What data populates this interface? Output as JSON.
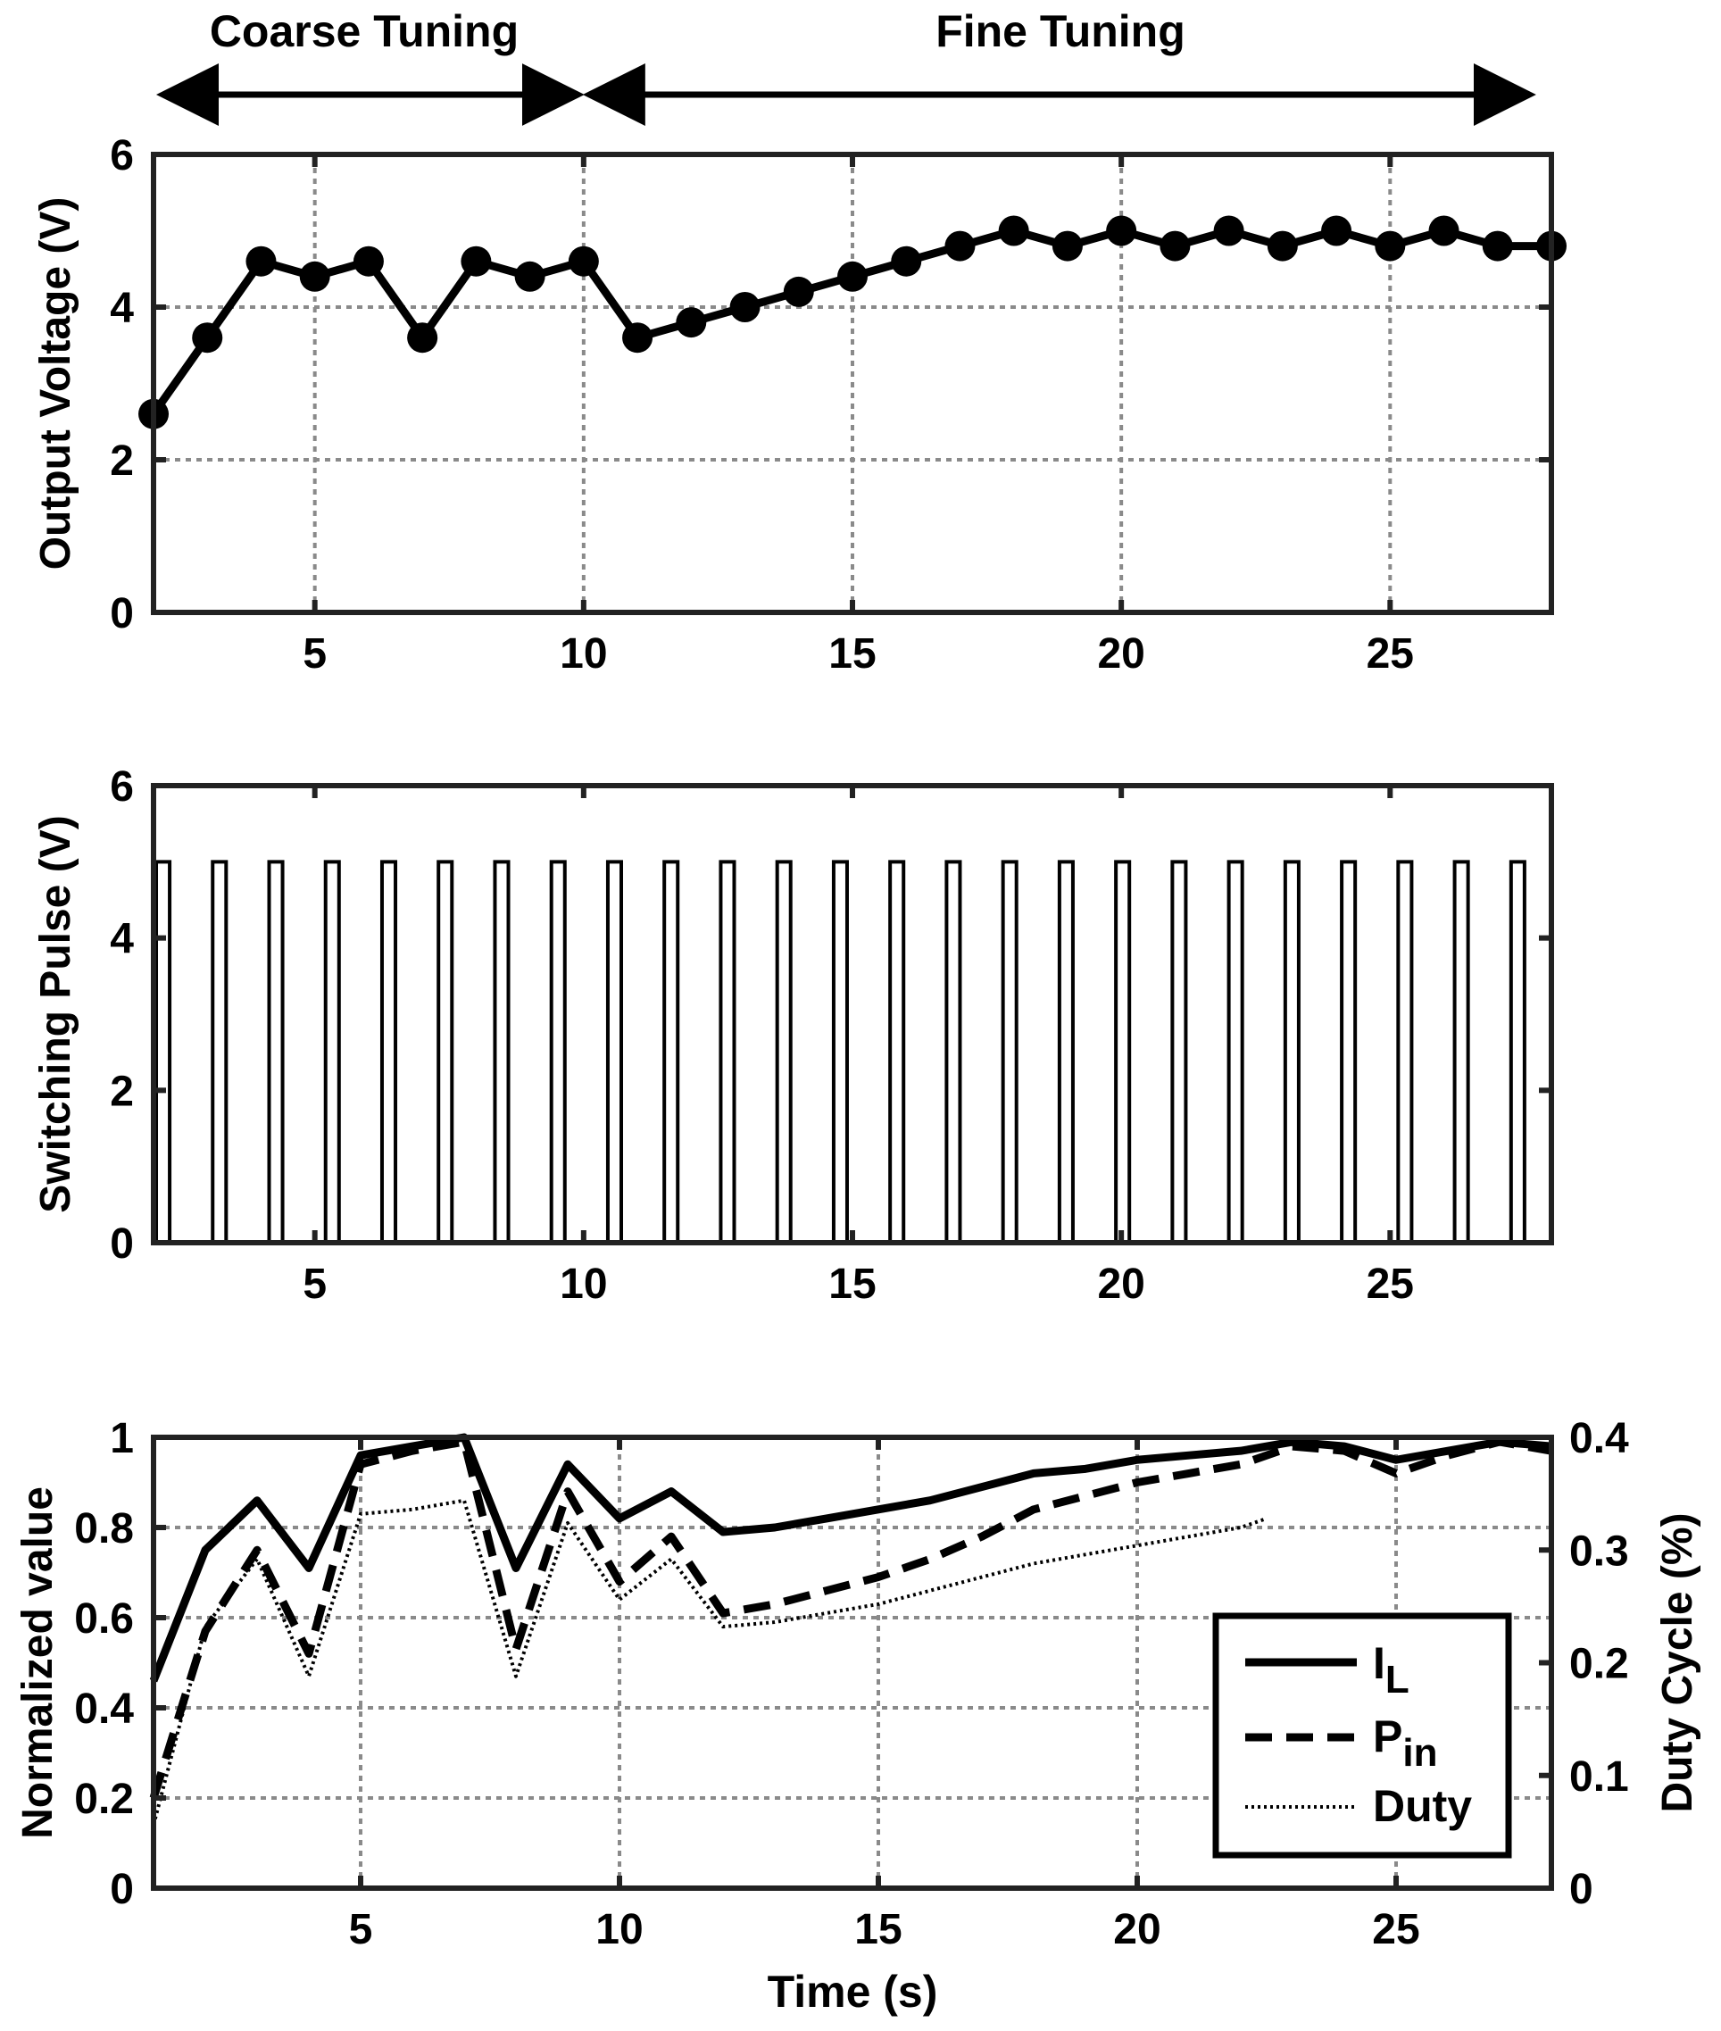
{
  "phases": {
    "coarse_label": "Coarse Tuning",
    "fine_label": "Fine Tuning",
    "coarse_range": [
      2,
      10
    ],
    "fine_range": [
      10,
      27.6
    ]
  },
  "colors": {
    "ink": "#000000",
    "grid": "#8a8a8a"
  },
  "chart_data": [
    {
      "type": "line",
      "title": "",
      "xlabel": "",
      "ylabel": "Output Voltage (V)",
      "xlim": [
        2,
        28
      ],
      "ylim": [
        0,
        6
      ],
      "xticks": [
        5,
        10,
        15,
        20,
        25
      ],
      "yticks": [
        0,
        2,
        4,
        6
      ],
      "grid": true,
      "marker": "circle",
      "series": [
        {
          "x": [
            2,
            3,
            4,
            5,
            6,
            7,
            8,
            9,
            10,
            11,
            12,
            13,
            14,
            15,
            16,
            17,
            18,
            19,
            20,
            21,
            22,
            23,
            24,
            25,
            26,
            27,
            28
          ],
          "y": [
            2.6,
            3.6,
            4.6,
            4.4,
            4.6,
            3.6,
            4.6,
            4.4,
            4.6,
            3.6,
            3.8,
            4.0,
            4.2,
            4.4,
            4.6,
            4.8,
            5.0,
            4.8,
            5.0,
            4.8,
            5.0,
            4.8,
            5.0,
            4.8,
            5.0,
            4.8,
            4.8
          ]
        }
      ]
    },
    {
      "type": "line",
      "title": "",
      "xlabel": "",
      "ylabel": "Switching Pulse (V)",
      "xlim": [
        2,
        28
      ],
      "ylim": [
        0,
        6
      ],
      "xticks": [
        5,
        10,
        15,
        20,
        25
      ],
      "yticks": [
        0,
        2,
        4,
        6
      ],
      "grid": false,
      "pulse": {
        "high": 5,
        "low": 0,
        "period": 1.05,
        "start": 2.05,
        "width": 0.25,
        "count": 25
      }
    },
    {
      "type": "line",
      "title": "",
      "xlabel": "Time (s)",
      "ylabel": "Normalized value",
      "y2label": "Duty Cycle (%)",
      "xlim": [
        1,
        28
      ],
      "ylim": [
        0,
        1
      ],
      "y2lim": [
        0,
        0.4
      ],
      "xticks": [
        5,
        10,
        15,
        20,
        25
      ],
      "yticks": [
        0,
        0.2,
        0.4,
        0.6,
        0.8,
        1
      ],
      "ytick_labels": [
        "0",
        "0.2",
        "0.4",
        "0.6",
        "0.8",
        "1"
      ],
      "y2ticks": [
        0,
        0.1,
        0.2,
        0.3,
        0.4
      ],
      "y2tick_labels": [
        "0",
        "0.1",
        "0.2",
        "0.3",
        "0.4"
      ],
      "grid": true,
      "legend_position": "lower-right",
      "series": [
        {
          "name_main": "I",
          "name_sub": "L",
          "style": "solid",
          "x": [
            1,
            2,
            3,
            4,
            5,
            6,
            7,
            8,
            9,
            10,
            11,
            12,
            13,
            14,
            15,
            16,
            17,
            18,
            19,
            20,
            21,
            22,
            23,
            24,
            25,
            26,
            27,
            28
          ],
          "y": [
            0.46,
            0.75,
            0.86,
            0.71,
            0.96,
            0.98,
            1.0,
            0.71,
            0.94,
            0.82,
            0.88,
            0.79,
            0.8,
            0.82,
            0.84,
            0.86,
            0.89,
            0.92,
            0.93,
            0.95,
            0.96,
            0.97,
            0.99,
            0.98,
            0.95,
            0.97,
            0.99,
            0.98
          ]
        },
        {
          "name_main": "P",
          "name_sub": "in",
          "style": "dashed",
          "x": [
            1,
            2,
            3,
            4,
            5,
            6,
            7,
            8,
            9,
            10,
            11,
            12,
            13,
            14,
            15,
            16,
            17,
            18,
            19,
            20,
            21,
            22,
            23,
            24,
            25,
            26,
            27,
            28
          ],
          "y": [
            0.2,
            0.57,
            0.75,
            0.52,
            0.94,
            0.97,
            0.99,
            0.53,
            0.88,
            0.68,
            0.78,
            0.61,
            0.63,
            0.66,
            0.69,
            0.73,
            0.78,
            0.84,
            0.87,
            0.9,
            0.92,
            0.94,
            0.98,
            0.97,
            0.92,
            0.96,
            0.99,
            0.97
          ]
        },
        {
          "name_main": "Duty",
          "name_sub": "",
          "style": "dotted",
          "x": [
            1,
            2,
            3,
            4,
            5,
            6,
            7,
            8,
            9,
            10,
            11,
            12,
            13,
            14,
            15,
            16,
            17,
            18,
            19,
            20,
            21,
            22,
            22.5
          ],
          "y": [
            0.14,
            0.58,
            0.73,
            0.47,
            0.83,
            0.84,
            0.86,
            0.47,
            0.81,
            0.64,
            0.73,
            0.58,
            0.59,
            0.61,
            0.63,
            0.66,
            0.69,
            0.72,
            0.74,
            0.76,
            0.78,
            0.8,
            0.82
          ]
        }
      ]
    }
  ]
}
